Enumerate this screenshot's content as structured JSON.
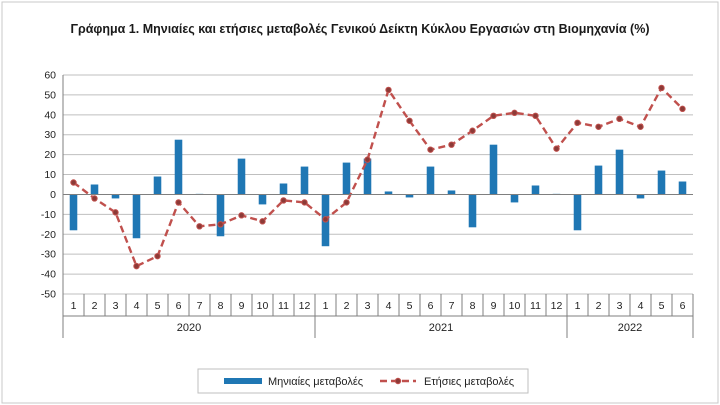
{
  "chart_data": {
    "type": "bar",
    "title": "Γράφημα 1. Μηνιαίες και ετήσιες μεταβολές  Γενικού Δείκτη Κύκλου Εργασιών στη Βιομηχανία (%)",
    "categories": [
      "1",
      "2",
      "3",
      "4",
      "5",
      "6",
      "7",
      "8",
      "9",
      "10",
      "11",
      "12",
      "1",
      "2",
      "3",
      "4",
      "5",
      "6",
      "7",
      "8",
      "9",
      "10",
      "11",
      "12",
      "1",
      "2",
      "3",
      "4",
      "5",
      "6"
    ],
    "year_groups": [
      {
        "label": "2020",
        "count": 12
      },
      {
        "label": "2021",
        "count": 12
      },
      {
        "label": "2022",
        "count": 6
      }
    ],
    "series": [
      {
        "name": "Μηνιαίες μεταβολές",
        "type": "bar",
        "color": "#1f77b4",
        "values": [
          -18,
          5,
          -2,
          -22,
          9,
          27.5,
          0.3,
          -21,
          18,
          -5,
          5.5,
          14,
          -26,
          16,
          18,
          1.5,
          -1.5,
          14,
          2,
          -16.5,
          25,
          -4,
          4.5,
          0.3,
          -18,
          14.5,
          22.5,
          -2,
          12,
          6.5
        ]
      },
      {
        "name": "Ετήσιες μεταβολές",
        "type": "line",
        "style": "dashed-with-markers",
        "color": "#c0504d",
        "values": [
          6,
          -2,
          -9,
          -36,
          -31,
          -4,
          -16,
          -15,
          -10.5,
          -13.5,
          -3,
          -4,
          -12.5,
          -4,
          17.5,
          52.5,
          37,
          22.5,
          25,
          32,
          39.5,
          41,
          39.5,
          23,
          36,
          34,
          38,
          34,
          53.5,
          43
        ]
      }
    ],
    "ylim": [
      -50,
      60
    ],
    "yticks": [
      -50,
      -40,
      -30,
      -20,
      -10,
      0,
      10,
      20,
      30,
      40,
      50,
      60
    ],
    "grid": true,
    "legend_position": "bottom"
  }
}
